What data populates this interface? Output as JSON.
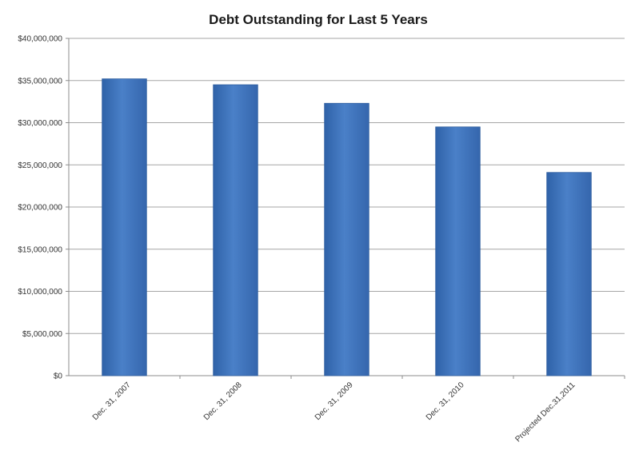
{
  "chart_data": {
    "type": "bar",
    "title": "Debt Outstanding for Last 5 Years",
    "xlabel": "",
    "ylabel": "",
    "categories": [
      "Dec. 31, 2007",
      "Dec. 31, 2008",
      "Dec. 31, 2009",
      "Dec. 31, 2010",
      "Projected Dec.31,2011"
    ],
    "values": [
      35200000,
      34500000,
      32300000,
      29500000,
      24100000
    ],
    "ylim": [
      0,
      40000000
    ],
    "yticks": [
      0,
      5000000,
      10000000,
      15000000,
      20000000,
      25000000,
      30000000,
      35000000,
      40000000
    ],
    "ytick_labels": [
      "$0",
      "$5,000,000",
      "$10,000,000",
      "$15,000,000",
      "$20,000,000",
      "$25,000,000",
      "$30,000,000",
      "$35,000,000",
      "$40,000,000"
    ],
    "grid": true,
    "legend": "none",
    "bar_color": "#3b6fb6",
    "bar_color_light": "#4f86cf",
    "grid_color": "#a6a6a6"
  }
}
